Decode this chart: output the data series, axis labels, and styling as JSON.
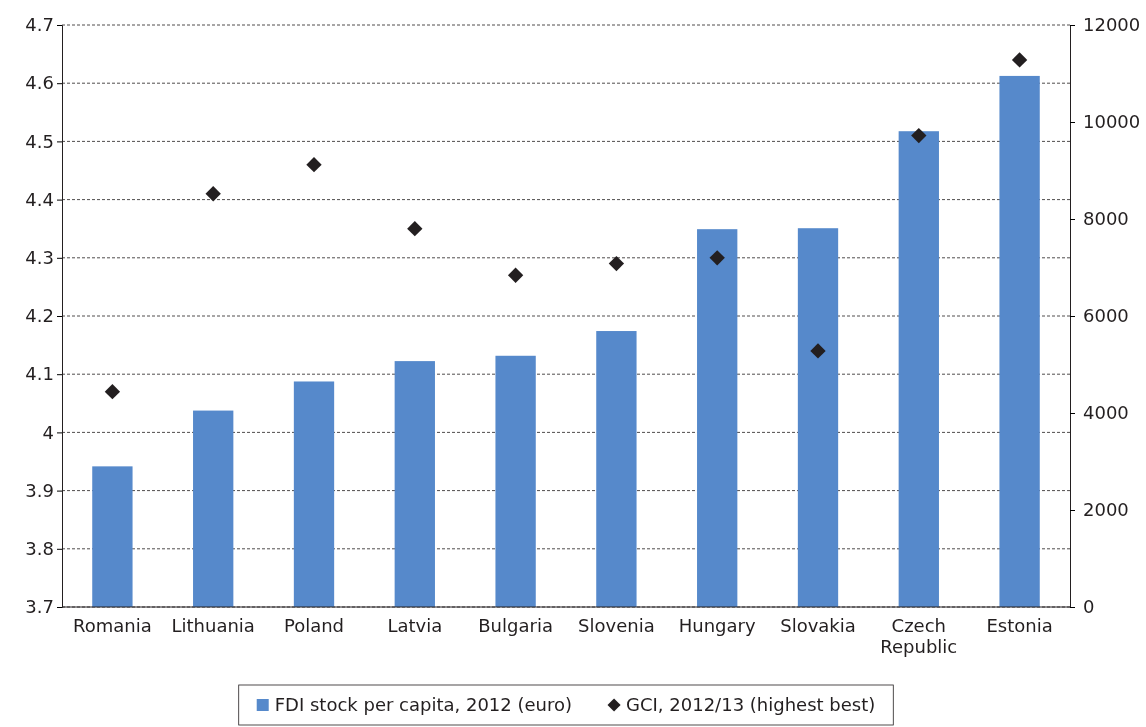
{
  "chart_data": {
    "type": "bar",
    "categories": [
      "Romania",
      "Lithuania",
      "Poland",
      "Latvia",
      "Bulgaria",
      "Slovenia",
      "Hungary",
      "Slovakia",
      "Czech Republic",
      "Estonia"
    ],
    "series": [
      {
        "name": "FDI stock per capita, 2012 (euro)",
        "axis": "y2",
        "color": "#5689cb",
        "values": [
          2900,
          4050,
          4650,
          5070,
          5180,
          5690,
          7790,
          7810,
          9810,
          10950
        ]
      },
      {
        "name": "GCI, 2012/13 (highest best)",
        "type": "scatter",
        "axis": "y",
        "color": "#231f20",
        "values": [
          4.07,
          4.41,
          4.46,
          4.35,
          4.27,
          4.29,
          4.3,
          4.14,
          4.51,
          4.64
        ]
      }
    ],
    "ylim": [
      3.7,
      4.7
    ],
    "yticks": [
      3.7,
      3.8,
      3.9,
      4,
      4.1,
      4.2,
      4.3,
      4.4,
      4.5,
      4.6,
      4.7
    ],
    "y2lim": [
      0,
      12000
    ],
    "y2ticks": [
      0,
      2000,
      4000,
      6000,
      8000,
      10000,
      12000
    ],
    "grid": "y",
    "legend": "bottom",
    "marker": "diamond"
  }
}
